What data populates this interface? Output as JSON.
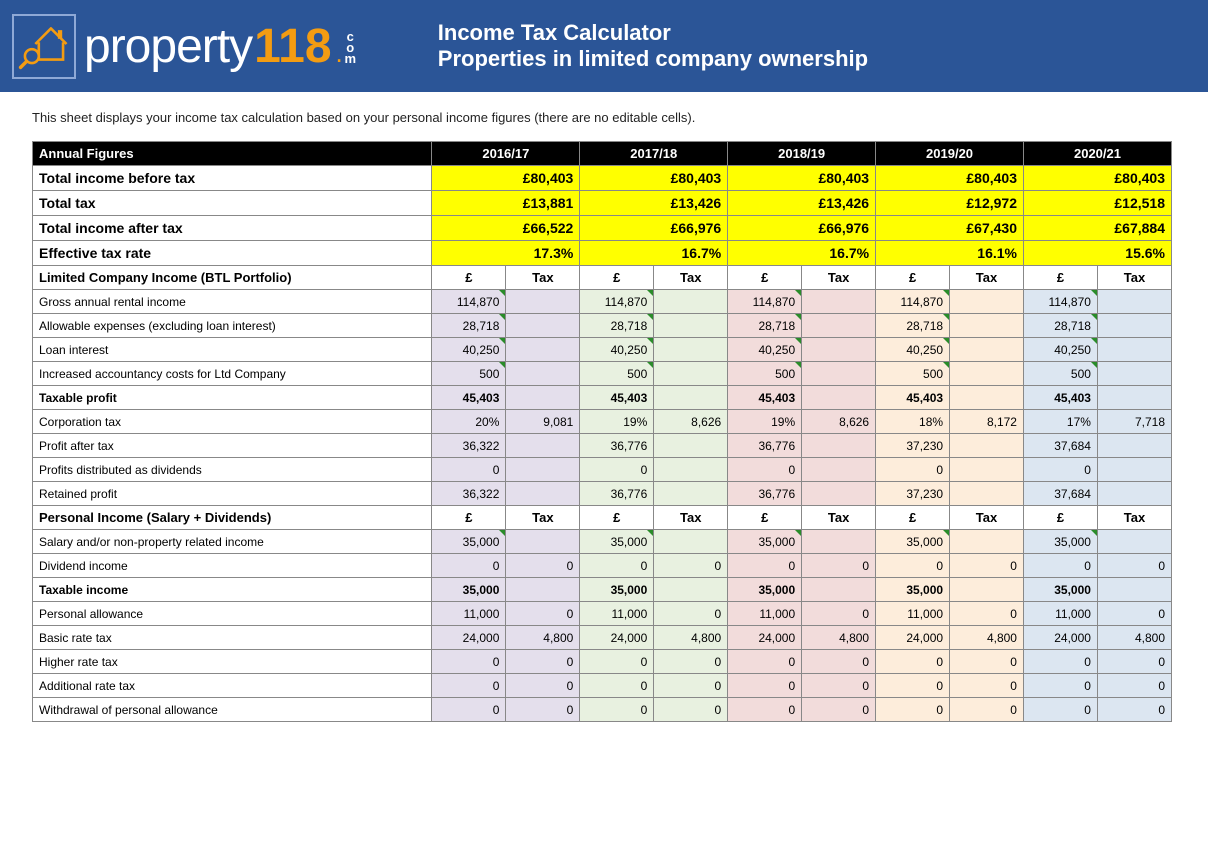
{
  "header": {
    "logo_prop": "property",
    "logo_118": "118",
    "logo_dot": ".",
    "logo_com": "com",
    "title1": "Income Tax Calculator",
    "title2": "Properties in limited company ownership"
  },
  "intro": "This sheet displays your income tax calculation based on your personal income figures (there are no editable cells).",
  "columns_header": "Annual Figures",
  "years": [
    "2016/17",
    "2017/18",
    "2018/19",
    "2019/20",
    "2020/21"
  ],
  "summary": [
    {
      "label": "Total income before tax",
      "values": [
        "£80,403",
        "£80,403",
        "£80,403",
        "£80,403",
        "£80,403"
      ]
    },
    {
      "label": "Total tax",
      "values": [
        "£13,881",
        "£13,426",
        "£13,426",
        "£12,972",
        "£12,518"
      ]
    },
    {
      "label": "Total income after tax",
      "values": [
        "£66,522",
        "£66,976",
        "£66,976",
        "£67,430",
        "£67,884"
      ]
    },
    {
      "label": "Effective tax rate",
      "values": [
        "17.3%",
        "16.7%",
        "16.7%",
        "16.1%",
        "15.6%"
      ]
    }
  ],
  "section1": {
    "title": "Limited Company Income (BTL Portfolio)",
    "sub_c": "£",
    "sub_t": "Tax",
    "rows": [
      {
        "label": "Gross annual rental income",
        "bold": false,
        "tri": true,
        "cells": [
          [
            "114,870",
            ""
          ],
          [
            "114,870",
            ""
          ],
          [
            "114,870",
            ""
          ],
          [
            "114,870",
            ""
          ],
          [
            "114,870",
            ""
          ]
        ]
      },
      {
        "label": "Allowable expenses (excluding loan interest)",
        "bold": false,
        "tri": true,
        "cells": [
          [
            "28,718",
            ""
          ],
          [
            "28,718",
            ""
          ],
          [
            "28,718",
            ""
          ],
          [
            "28,718",
            ""
          ],
          [
            "28,718",
            ""
          ]
        ]
      },
      {
        "label": "Loan interest",
        "bold": false,
        "tri": true,
        "cells": [
          [
            "40,250",
            ""
          ],
          [
            "40,250",
            ""
          ],
          [
            "40,250",
            ""
          ],
          [
            "40,250",
            ""
          ],
          [
            "40,250",
            ""
          ]
        ]
      },
      {
        "label": "Increased accountancy costs for Ltd Company",
        "bold": false,
        "tri": true,
        "cells": [
          [
            "500",
            ""
          ],
          [
            "500",
            ""
          ],
          [
            "500",
            ""
          ],
          [
            "500",
            ""
          ],
          [
            "500",
            ""
          ]
        ]
      },
      {
        "label": "Taxable profit",
        "bold": true,
        "tri": false,
        "cells": [
          [
            "45,403",
            ""
          ],
          [
            "45,403",
            ""
          ],
          [
            "45,403",
            ""
          ],
          [
            "45,403",
            ""
          ],
          [
            "45,403",
            ""
          ]
        ]
      },
      {
        "label": "Corporation tax",
        "bold": false,
        "tri": false,
        "cells": [
          [
            "20%",
            "9,081"
          ],
          [
            "19%",
            "8,626"
          ],
          [
            "19%",
            "8,626"
          ],
          [
            "18%",
            "8,172"
          ],
          [
            "17%",
            "7,718"
          ]
        ]
      },
      {
        "label": "Profit after tax",
        "bold": false,
        "tri": false,
        "cells": [
          [
            "36,322",
            ""
          ],
          [
            "36,776",
            ""
          ],
          [
            "36,776",
            ""
          ],
          [
            "37,230",
            ""
          ],
          [
            "37,684",
            ""
          ]
        ]
      },
      {
        "label": "Profits distributed as dividends",
        "bold": false,
        "tri": false,
        "cells": [
          [
            "0",
            ""
          ],
          [
            "0",
            ""
          ],
          [
            "0",
            ""
          ],
          [
            "0",
            ""
          ],
          [
            "0",
            ""
          ]
        ]
      },
      {
        "label": "Retained profit",
        "bold": false,
        "tri": false,
        "cells": [
          [
            "36,322",
            ""
          ],
          [
            "36,776",
            ""
          ],
          [
            "36,776",
            ""
          ],
          [
            "37,230",
            ""
          ],
          [
            "37,684",
            ""
          ]
        ]
      }
    ]
  },
  "section2": {
    "title": "Personal Income (Salary + Dividends)",
    "sub_c": "£",
    "sub_t": "Tax",
    "rows": [
      {
        "label": "Salary and/or non-property related income",
        "bold": false,
        "tri": true,
        "cells": [
          [
            "35,000",
            ""
          ],
          [
            "35,000",
            ""
          ],
          [
            "35,000",
            ""
          ],
          [
            "35,000",
            ""
          ],
          [
            "35,000",
            ""
          ]
        ]
      },
      {
        "label": "Dividend income",
        "bold": false,
        "tri": false,
        "cells": [
          [
            "0",
            "0"
          ],
          [
            "0",
            "0"
          ],
          [
            "0",
            "0"
          ],
          [
            "0",
            "0"
          ],
          [
            "0",
            "0"
          ]
        ]
      },
      {
        "label": "Taxable income",
        "bold": true,
        "tri": false,
        "cells": [
          [
            "35,000",
            ""
          ],
          [
            "35,000",
            ""
          ],
          [
            "35,000",
            ""
          ],
          [
            "35,000",
            ""
          ],
          [
            "35,000",
            ""
          ]
        ]
      },
      {
        "label": "Personal allowance",
        "bold": false,
        "tri": false,
        "cells": [
          [
            "11,000",
            "0"
          ],
          [
            "11,000",
            "0"
          ],
          [
            "11,000",
            "0"
          ],
          [
            "11,000",
            "0"
          ],
          [
            "11,000",
            "0"
          ]
        ]
      },
      {
        "label": "Basic rate tax",
        "bold": false,
        "tri": false,
        "cells": [
          [
            "24,000",
            "4,800"
          ],
          [
            "24,000",
            "4,800"
          ],
          [
            "24,000",
            "4,800"
          ],
          [
            "24,000",
            "4,800"
          ],
          [
            "24,000",
            "4,800"
          ]
        ]
      },
      {
        "label": "Higher rate tax",
        "bold": false,
        "tri": false,
        "cells": [
          [
            "0",
            "0"
          ],
          [
            "0",
            "0"
          ],
          [
            "0",
            "0"
          ],
          [
            "0",
            "0"
          ],
          [
            "0",
            "0"
          ]
        ]
      },
      {
        "label": "Additional rate tax",
        "bold": false,
        "tri": false,
        "cells": [
          [
            "0",
            "0"
          ],
          [
            "0",
            "0"
          ],
          [
            "0",
            "0"
          ],
          [
            "0",
            "0"
          ],
          [
            "0",
            "0"
          ]
        ]
      },
      {
        "label": "Withdrawal of personal allowance",
        "bold": false,
        "tri": false,
        "cells": [
          [
            "0",
            "0"
          ],
          [
            "0",
            "0"
          ],
          [
            "0",
            "0"
          ],
          [
            "0",
            "0"
          ],
          [
            "0",
            "0"
          ]
        ]
      }
    ]
  },
  "colors": {
    "header_bg": "#2b5597",
    "accent": "#f39c12",
    "highlight": "#ffff00",
    "year_tints": [
      "#e4dfec",
      "#e8f1e0",
      "#f2dcdb",
      "#fdeddb",
      "#dce6f1"
    ]
  }
}
